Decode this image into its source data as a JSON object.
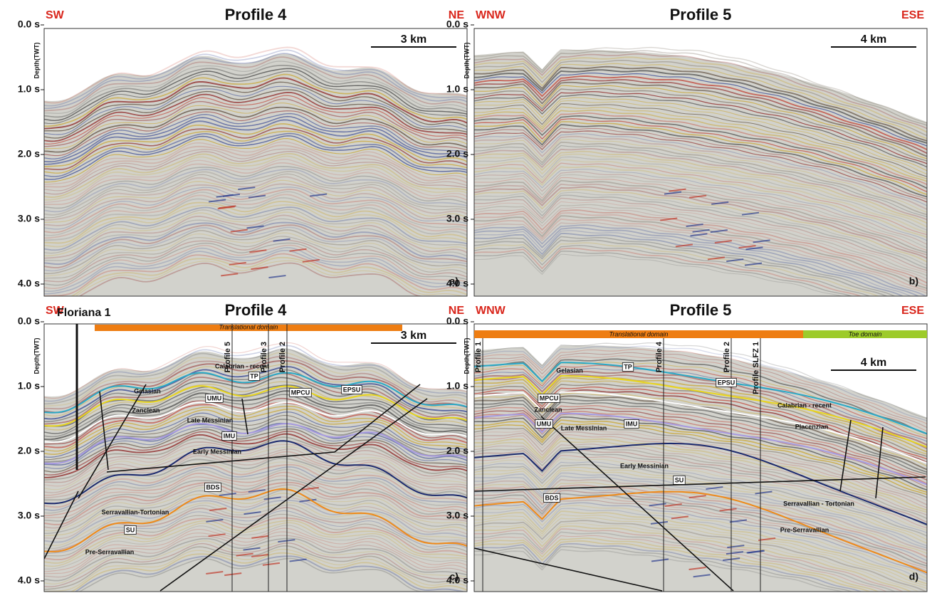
{
  "panels": [
    {
      "title": "Profile 4",
      "left_label": "SW",
      "right_label": "NE",
      "scale_bar": "3 km",
      "letter": "a)",
      "depth_axis_label": "Depth(TWT)",
      "depth_ticks": [
        "0.0 s",
        "1.0 s",
        "2.0 s",
        "3.0 s",
        "4.0 s"
      ]
    },
    {
      "title": "Profile 5",
      "left_label": "WNW",
      "right_label": "ESE",
      "scale_bar": "4 km",
      "letter": "b)",
      "depth_axis_label": "Depth(TWT)",
      "depth_ticks": [
        "0.0 s",
        "1.0 s",
        "2.0 s",
        "3.0 s",
        "4.0 s"
      ]
    },
    {
      "title": "Profile 4",
      "left_label": "SW",
      "right_label": "NE",
      "scale_bar": "3 km",
      "letter": "c)",
      "depth_axis_label": "Depth(TWT)",
      "depth_ticks": [
        "0.0 s",
        "1.0 s",
        "2.0 s",
        "3.0 s",
        "4.0 s"
      ],
      "well_label": "Floriana 1",
      "domains": [
        "Translational domain"
      ],
      "profile_marks": [
        "Profile 5",
        "Profile 3",
        "Profile 2"
      ],
      "annotations": [
        "Calabrian - recent",
        "TP",
        "Gelasian",
        "UMU",
        "MPCU",
        "EPSU",
        "Zanclean",
        "Late Messinian",
        "IMU",
        "Early Messinian",
        "BDS",
        "Serravallian-Tortonian",
        "SU",
        "Pre-Serravallian"
      ]
    },
    {
      "title": "Profile 5",
      "left_label": "WNW",
      "right_label": "ESE",
      "scale_bar": "4 km",
      "letter": "d)",
      "depth_axis_label": "Depth(TWT)",
      "depth_ticks": [
        "0.0 s",
        "1.0 s",
        "2.0 s",
        "3.0 s",
        "4.0 s"
      ],
      "domains": [
        "Translational domain",
        "Toe domain"
      ],
      "profile_marks": [
        "Profile 1",
        "Profile 4",
        "Profile 2",
        "Profile SLFZ 1"
      ],
      "annotations": [
        "Gelasian",
        "TP",
        "EPSU",
        "MPCU",
        "Zanclean",
        "UMU",
        "Late Messinian",
        "IMU",
        "Calabrian - recent",
        "Placenzian",
        "Early Messinian",
        "BDS",
        "SU",
        "Serravallian - Tortonian",
        "Pre-Serravallian"
      ]
    }
  ]
}
